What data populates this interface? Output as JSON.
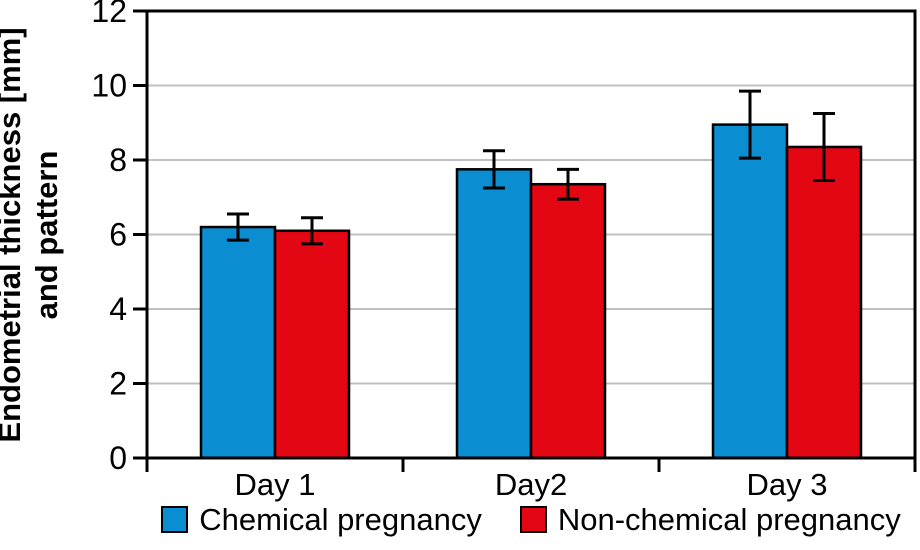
{
  "chart_data": {
    "type": "bar",
    "categories": [
      "Day 1",
      "Day2",
      "Day 3"
    ],
    "series": [
      {
        "name": "Chemical pregnancy",
        "color": "#0A8DD1",
        "values": [
          6.2,
          7.75,
          8.95
        ],
        "errors": [
          0.35,
          0.5,
          0.9
        ]
      },
      {
        "name": "Non-chemical pregnancy",
        "color": "#E30613",
        "values": [
          6.1,
          7.35,
          8.35
        ],
        "errors": [
          0.35,
          0.4,
          0.9
        ]
      }
    ],
    "ylabel_line1": "Endometrial thickness [mm]",
    "ylabel_line2": "and pattern",
    "xlabel": "",
    "ylim": [
      0,
      12
    ],
    "ytick_step": 2,
    "ytick_labels": [
      "0",
      "2",
      "4",
      "6",
      "8",
      "10",
      "12"
    ],
    "grid": true,
    "legend_position": "bottom",
    "colors": {
      "grid": "#BFBFBF",
      "axis": "#000000",
      "bar_outline": "#000000",
      "error_bar": "#000000",
      "text": "#000000",
      "background": "#FFFFFF"
    }
  }
}
